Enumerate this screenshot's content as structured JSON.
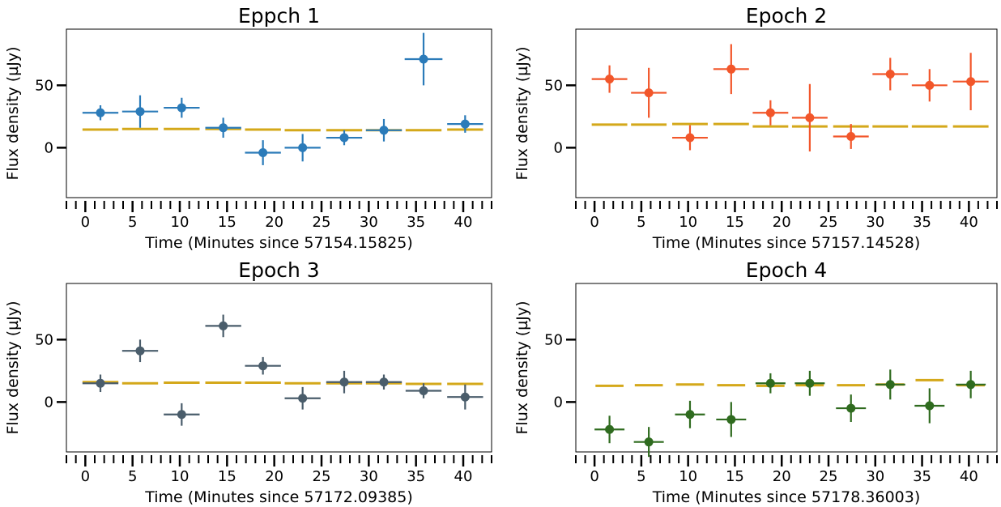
{
  "figure": {
    "ylabel": "Flux density (µJy)",
    "model_color": "#d4a81a"
  },
  "chart_data": [
    {
      "type": "scatter",
      "title": "Eppch 1",
      "xlabel": "Time (Minutes since 57154.15825)",
      "ylabel": "Flux density (µJy)",
      "xlim": [
        -2,
        43
      ],
      "ylim": [
        -40,
        95
      ],
      "xticks": [
        0,
        5,
        10,
        15,
        20,
        25,
        30,
        35,
        40
      ],
      "xtick_labels": [
        "0",
        "5",
        "10",
        "15",
        "20",
        "25",
        "30",
        "35",
        "40"
      ],
      "yticks": [
        0,
        50
      ],
      "ytick_labels": [
        "0",
        "50"
      ],
      "grid": false,
      "color": "#2b7bb9",
      "series": [
        {
          "x": [
            1.6,
            5.8,
            10.2,
            14.6,
            18.8,
            23.0,
            27.4,
            31.6,
            35.8,
            40.2
          ],
          "y": [
            28,
            29,
            32,
            16,
            -4,
            0,
            8,
            14,
            71,
            19
          ],
          "xerr": [
            1.9,
            1.9,
            1.9,
            1.9,
            1.9,
            1.9,
            1.9,
            1.9,
            2.0,
            1.9
          ],
          "yerr": [
            6,
            13,
            8,
            8,
            10,
            11,
            6,
            9,
            21,
            7
          ]
        }
      ],
      "model": {
        "x": [
          1.6,
          5.8,
          10.2,
          14.6,
          18.8,
          23.0,
          27.4,
          31.6,
          35.8,
          40.2
        ],
        "y": [
          14.5,
          15.0,
          15.0,
          15.0,
          14.5,
          14.0,
          14.0,
          14.0,
          14.0,
          14.5
        ],
        "xerr": [
          1.9,
          1.9,
          1.9,
          1.9,
          1.9,
          1.9,
          1.9,
          1.9,
          1.9,
          1.9
        ]
      }
    },
    {
      "type": "scatter",
      "title": "Epoch 2",
      "xlabel": "Time (Minutes since 57157.14528)",
      "ylabel": "Flux density (µJy)",
      "xlim": [
        -2,
        43
      ],
      "ylim": [
        -40,
        95
      ],
      "xticks": [
        0,
        5,
        10,
        15,
        20,
        25,
        30,
        35,
        40
      ],
      "xtick_labels": [
        "0",
        "5",
        "10",
        "15",
        "20",
        "25",
        "30",
        "35",
        "40"
      ],
      "yticks": [
        0,
        50
      ],
      "ytick_labels": [
        "0",
        "50"
      ],
      "grid": false,
      "color": "#f2562a",
      "series": [
        {
          "x": [
            1.6,
            5.8,
            10.2,
            14.6,
            18.8,
            23.0,
            27.4,
            31.6,
            35.8,
            40.2
          ],
          "y": [
            55,
            44,
            8,
            63,
            28,
            24,
            9,
            59,
            50,
            53
          ],
          "xerr": [
            1.9,
            1.9,
            1.9,
            1.9,
            1.9,
            1.9,
            1.9,
            1.9,
            1.9,
            1.9
          ],
          "yerr": [
            11,
            20,
            10,
            20,
            10,
            27,
            10,
            13,
            13,
            23
          ]
        }
      ],
      "model": {
        "x": [
          1.6,
          5.8,
          10.2,
          14.6,
          18.8,
          23.0,
          27.4,
          31.6,
          35.8,
          40.2
        ],
        "y": [
          18.5,
          18.5,
          19.0,
          19.0,
          17.0,
          17.0,
          17.0,
          17.0,
          17.0,
          17.0
        ],
        "xerr": [
          1.9,
          1.9,
          1.9,
          1.9,
          1.9,
          1.9,
          1.9,
          1.9,
          1.9,
          1.9
        ]
      }
    },
    {
      "type": "scatter",
      "title": "Epoch 3",
      "xlabel": "Time (Minutes since 57172.09385)",
      "ylabel": "Flux density (µJy)",
      "xlim": [
        -2,
        43
      ],
      "ylim": [
        -40,
        95
      ],
      "xticks": [
        0,
        5,
        10,
        15,
        20,
        25,
        30,
        35,
        40
      ],
      "xtick_labels": [
        "0",
        "5",
        "10",
        "15",
        "20",
        "25",
        "30",
        "35",
        "40"
      ],
      "yticks": [
        0,
        50
      ],
      "ytick_labels": [
        "0",
        "50"
      ],
      "grid": false,
      "color": "#4a5d6b",
      "series": [
        {
          "x": [
            1.6,
            5.8,
            10.2,
            14.6,
            18.8,
            23.0,
            27.4,
            31.6,
            35.8,
            40.2
          ],
          "y": [
            15,
            41,
            -10,
            61,
            29,
            3,
            16,
            16,
            9,
            4
          ],
          "xerr": [
            1.9,
            1.9,
            1.9,
            1.9,
            1.9,
            1.9,
            1.9,
            1.9,
            1.9,
            1.9
          ],
          "yerr": [
            7,
            9,
            9,
            9,
            7,
            9,
            9,
            6,
            6,
            10
          ]
        }
      ],
      "model": {
        "x": [
          1.6,
          5.8,
          10.2,
          14.6,
          18.8,
          23.0,
          27.4,
          31.6,
          35.8,
          40.2
        ],
        "y": [
          16.0,
          15.0,
          15.5,
          15.5,
          15.5,
          15.0,
          15.0,
          15.0,
          14.5,
          14.5
        ],
        "xerr": [
          1.9,
          1.9,
          1.9,
          1.9,
          1.9,
          1.9,
          1.9,
          1.9,
          1.9,
          1.9
        ]
      }
    },
    {
      "type": "scatter",
      "title": "Epoch 4",
      "xlabel": "Time (Minutes since 57178.36003)",
      "ylabel": "Flux density (µJy)",
      "xlim": [
        -2,
        43
      ],
      "ylim": [
        -40,
        95
      ],
      "xticks": [
        0,
        5,
        10,
        15,
        20,
        25,
        30,
        35,
        40
      ],
      "xtick_labels": [
        "0",
        "5",
        "10",
        "15",
        "20",
        "25",
        "30",
        "35",
        "40"
      ],
      "yticks": [
        0,
        50
      ],
      "ytick_labels": [
        "0",
        "50"
      ],
      "grid": false,
      "color": "#2f6b1f",
      "series": [
        {
          "x": [
            1.6,
            5.8,
            10.2,
            14.6,
            18.8,
            23.0,
            27.4,
            31.6,
            35.8,
            40.2
          ],
          "y": [
            -22,
            -32,
            -10,
            -14,
            15,
            15,
            -5,
            14,
            -3,
            14
          ],
          "xerr": [
            1.6,
            1.6,
            1.6,
            1.6,
            1.6,
            1.6,
            1.6,
            1.6,
            1.6,
            1.6
          ],
          "yerr": [
            11,
            12,
            11,
            14,
            8,
            10,
            11,
            12,
            14,
            11
          ]
        }
      ],
      "model": {
        "x": [
          1.6,
          5.8,
          10.2,
          14.6,
          18.8,
          23.0,
          27.4,
          31.6,
          35.8,
          40.2
        ],
        "y": [
          13.0,
          13.5,
          14.0,
          13.5,
          13.0,
          13.5,
          13.5,
          14.0,
          17.5,
          13.5
        ],
        "xerr": [
          1.5,
          1.5,
          1.5,
          1.5,
          1.5,
          1.5,
          1.5,
          1.5,
          1.5,
          1.5
        ]
      }
    }
  ]
}
